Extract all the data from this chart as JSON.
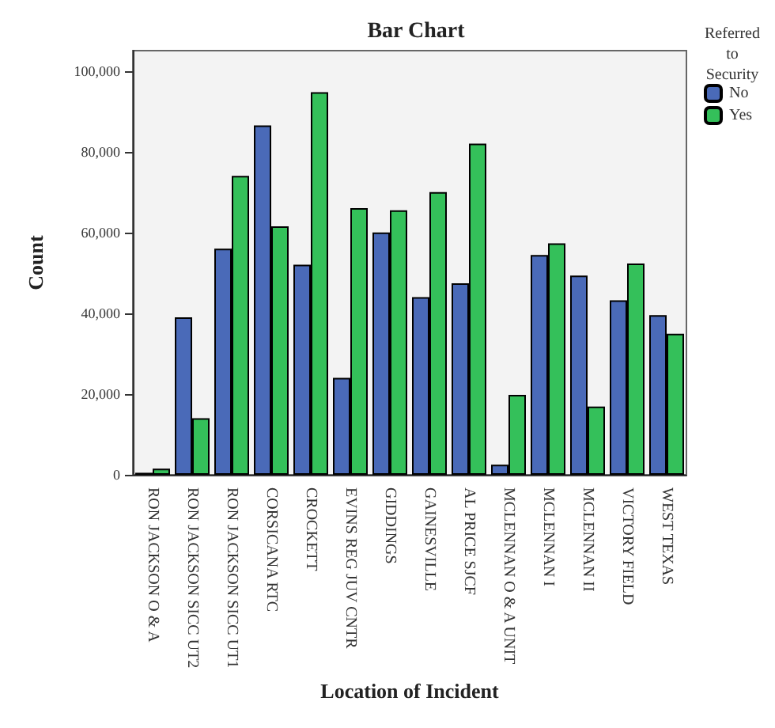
{
  "chart_data": {
    "type": "bar",
    "title": "Bar Chart",
    "xlabel": "Location of Incident",
    "ylabel": "Count",
    "legend_title": "Referred to Security",
    "categories": [
      "RON JACKSON O & A",
      "RON JACKSON SICC UT2",
      "RON JACKSON SICC UT1",
      "CORSICANA RTC",
      "CROCKETT",
      "EVINS REG JUV CNTR",
      "GIDDINGS",
      "GAINESVILLE",
      "AL PRICE SJCF",
      "MCLENNAN O & A UNIT",
      "MCLENNAN I",
      "MCLENNAN II",
      "VICTORY FIELD",
      "WEST TEXAS"
    ],
    "series": [
      {
        "name": "No",
        "color": "#4a6ab8",
        "values": [
          500,
          39000,
          56000,
          86500,
          52000,
          24000,
          60000,
          44000,
          47400,
          2500,
          54400,
          49300,
          43200,
          39500
        ]
      },
      {
        "name": "Yes",
        "color": "#34c05a",
        "values": [
          1500,
          14000,
          74000,
          61500,
          94700,
          66000,
          65500,
          70000,
          82000,
          19800,
          57300,
          16900,
          52300,
          34900
        ]
      }
    ],
    "ylim": [
      0,
      105000
    ],
    "yticks": [
      0,
      {
        "value": 20000,
        "label": "20,000"
      },
      {
        "value": 40000,
        "label": "40,000"
      },
      {
        "value": 60000,
        "label": "60,000"
      },
      {
        "value": 80000,
        "label": "80,000"
      },
      {
        "value": 100000,
        "label": "100,000"
      }
    ],
    "grid": false,
    "legend": "top right"
  }
}
